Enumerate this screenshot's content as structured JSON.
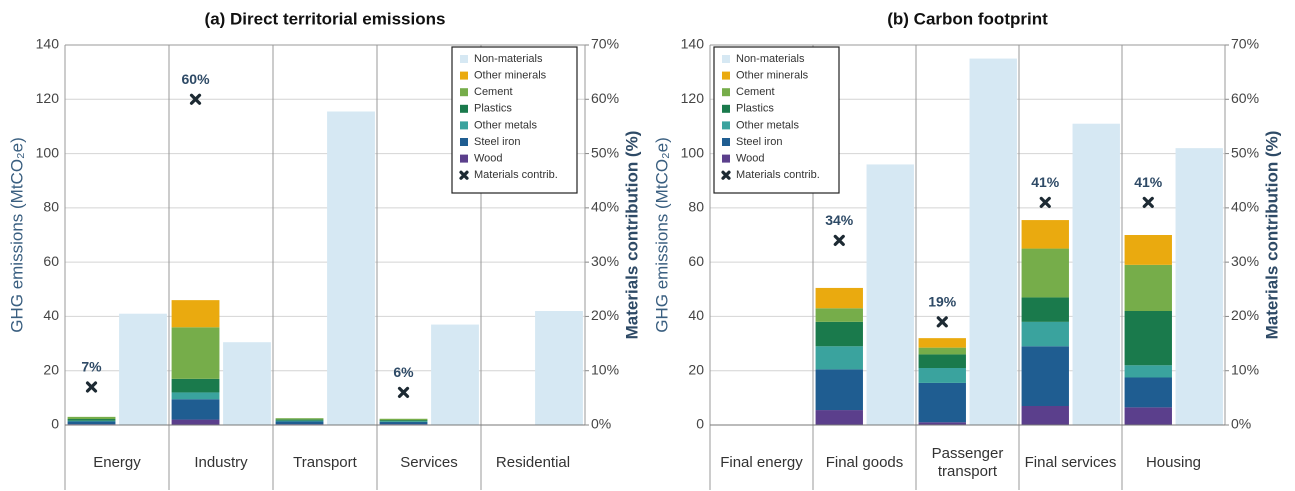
{
  "chart_data": [
    {
      "type": "bar",
      "title": "(a) Direct territorial emissions",
      "ylabel": "GHG emissions (MtCO₂e)",
      "y2label": "Materials contribution (%)",
      "categories": [
        "Energy",
        "Industry",
        "Transport",
        "Services",
        "Residential"
      ],
      "series": [
        {
          "name": "Wood",
          "color": "#5b3f8c",
          "position": "left",
          "values": [
            0.3,
            2,
            0.3,
            0.3,
            0
          ]
        },
        {
          "name": "Steel iron",
          "color": "#1f5d91",
          "position": "left",
          "values": [
            1,
            7.5,
            1,
            0.8,
            0
          ]
        },
        {
          "name": "Other metals",
          "color": "#3aa39e",
          "position": "left",
          "values": [
            0.3,
            2.5,
            0.3,
            0.3,
            0
          ]
        },
        {
          "name": "Plastics",
          "color": "#1a7a4c",
          "position": "left",
          "values": [
            0.6,
            5,
            0.4,
            0.4,
            0
          ]
        },
        {
          "name": "Cement",
          "color": "#76ad4a",
          "position": "left",
          "values": [
            0.8,
            19,
            0.5,
            0.5,
            0
          ]
        },
        {
          "name": "Other minerals",
          "color": "#eaaa0f",
          "position": "left",
          "values": [
            0,
            10,
            0,
            0,
            0
          ]
        },
        {
          "name": "Non-materials",
          "color": "#d6e8f3",
          "position": "right",
          "values": [
            41,
            30.5,
            115.5,
            37,
            42
          ]
        }
      ],
      "markers": {
        "name": "Materials contrib.",
        "color": "#1d2a33",
        "axis": "y2",
        "values": [
          7,
          60,
          null,
          6,
          null
        ],
        "value_labels": [
          "7%",
          "60%",
          null,
          "6%",
          null
        ]
      },
      "ylim": [
        0,
        140
      ],
      "yticks": [
        0,
        20,
        40,
        60,
        80,
        100,
        120,
        140
      ],
      "y2lim": [
        0,
        70
      ],
      "y2ticks": [
        {
          "value": 0,
          "label": "0%"
        },
        {
          "value": 10,
          "label": "10%"
        },
        {
          "value": 20,
          "label": "20%"
        },
        {
          "value": 30,
          "label": "30%"
        },
        {
          "value": 40,
          "label": "40%"
        },
        {
          "value": 50,
          "label": "50%"
        },
        {
          "value": 60,
          "label": "60%"
        },
        {
          "value": 70,
          "label": "70%"
        }
      ],
      "grid": true,
      "legend": "upper right"
    },
    {
      "type": "bar",
      "title": "(b) Carbon footprint",
      "ylabel": "GHG emissions (MtCO₂e)",
      "y2label": "Materials contribution (%)",
      "categories": [
        "Final energy",
        "Final goods",
        "Passenger transport",
        "Final services",
        "Housing"
      ],
      "series": [
        {
          "name": "Wood",
          "color": "#5b3f8c",
          "position": "left",
          "values": [
            0,
            5.5,
            1,
            7,
            6.5
          ]
        },
        {
          "name": "Steel iron",
          "color": "#1f5d91",
          "position": "left",
          "values": [
            0,
            15,
            14.5,
            22,
            11
          ]
        },
        {
          "name": "Other metals",
          "color": "#3aa39e",
          "position": "left",
          "values": [
            0,
            8.5,
            5.5,
            9,
            4.5
          ]
        },
        {
          "name": "Plastics",
          "color": "#1a7a4c",
          "position": "left",
          "values": [
            0,
            9,
            5,
            9,
            20
          ]
        },
        {
          "name": "Cement",
          "color": "#76ad4a",
          "position": "left",
          "values": [
            0,
            5,
            2.5,
            18,
            17
          ]
        },
        {
          "name": "Other minerals",
          "color": "#eaaa0f",
          "position": "left",
          "values": [
            0,
            7.5,
            3.5,
            10.5,
            11
          ]
        },
        {
          "name": "Non-materials",
          "color": "#d6e8f3",
          "position": "right",
          "values": [
            0,
            96,
            135,
            111,
            102
          ]
        }
      ],
      "markers": {
        "name": "Materials contrib.",
        "color": "#1d2a33",
        "axis": "y2",
        "values": [
          null,
          34,
          19,
          41,
          41
        ],
        "value_labels": [
          null,
          "34%",
          "19%",
          "41%",
          "41%"
        ]
      },
      "ylim": [
        0,
        140
      ],
      "yticks": [
        0,
        20,
        40,
        60,
        80,
        100,
        120,
        140
      ],
      "y2lim": [
        0,
        70
      ],
      "y2ticks": [
        {
          "value": 0,
          "label": "0%"
        },
        {
          "value": 10,
          "label": "10%"
        },
        {
          "value": 20,
          "label": "20%"
        },
        {
          "value": 30,
          "label": "30%"
        },
        {
          "value": 40,
          "label": "40%"
        },
        {
          "value": 50,
          "label": "50%"
        },
        {
          "value": 60,
          "label": "60%"
        },
        {
          "value": 70,
          "label": "70%"
        }
      ],
      "grid": true,
      "legend": "upper left"
    }
  ]
}
